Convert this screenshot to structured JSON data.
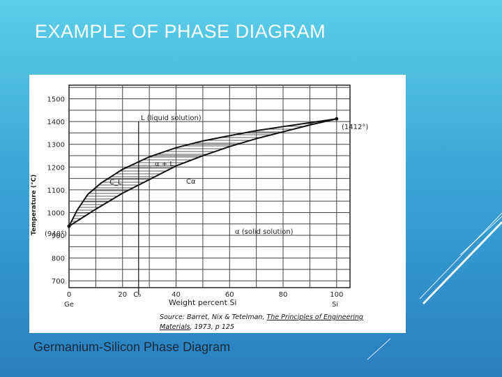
{
  "slide": {
    "title": "EXAMPLE OF PHASE DIAGRAM",
    "caption": "Germanium-Silicon Phase Diagram"
  },
  "chart_data": {
    "type": "line",
    "ylabel": "Temperature (°C)",
    "xlabel": "Weight percent Si",
    "x_ticks": [
      "0",
      "20",
      "40",
      "60",
      "80",
      "100"
    ],
    "x_ends": {
      "left": "Ge",
      "right": "Si"
    },
    "c0_label": "C₀",
    "y_ticks": [
      "1500",
      "1400",
      "1300",
      "1200",
      "1100",
      "1000",
      "900",
      "800",
      "700"
    ],
    "xlim": [
      0,
      105
    ],
    "ylim": [
      670,
      1560
    ],
    "region_labels": {
      "liquid": "L (liquid solution)",
      "two_phase": "α + L",
      "solid": "α (solid solution)",
      "cl": "C_L",
      "calpha": "Cα"
    },
    "melting_points": {
      "ge": "(940°)",
      "si": "(1412°)"
    },
    "series": [
      {
        "name": "liquidus",
        "x": [
          0,
          3,
          7,
          12,
          20,
          30,
          40,
          50,
          60,
          70,
          80,
          90,
          100
        ],
        "y": [
          940,
          1010,
          1080,
          1130,
          1190,
          1245,
          1285,
          1315,
          1338,
          1360,
          1378,
          1395,
          1412
        ]
      },
      {
        "name": "solidus",
        "x": [
          0,
          10,
          20,
          30,
          40,
          50,
          60,
          70,
          80,
          90,
          100
        ],
        "y": [
          940,
          1015,
          1085,
          1145,
          1205,
          1250,
          1290,
          1325,
          1355,
          1385,
          1412
        ]
      }
    ],
    "c0_x": 26,
    "source": {
      "line1a": "Source: Barret, Nix & Tetelman, ",
      "line1b": "The Principles of Engineering",
      "line2a": "Materials",
      "line2b": ", 1973, p 125"
    }
  }
}
